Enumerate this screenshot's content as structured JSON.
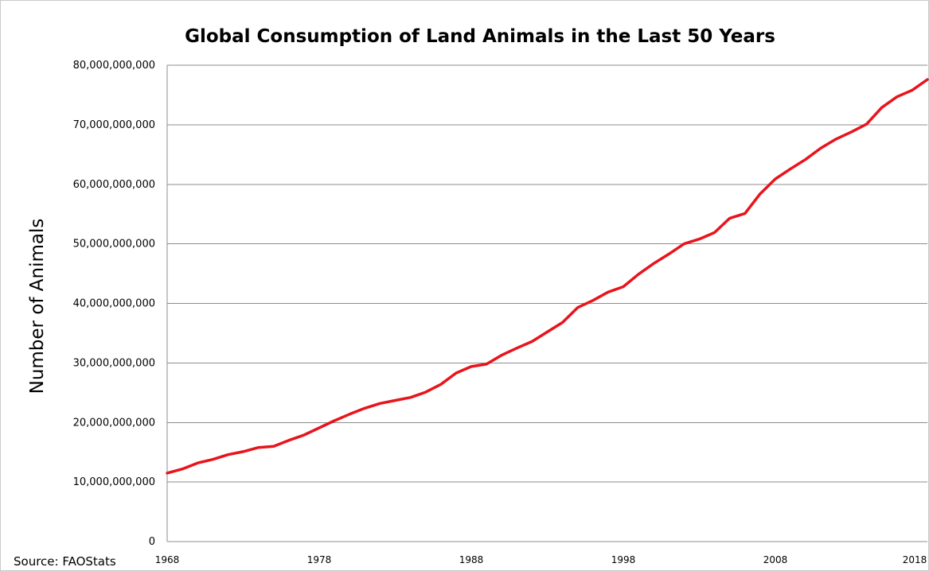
{
  "chart_data": {
    "type": "line",
    "title": "Global Consumption of Land Animals in the Last 50 Years",
    "ylabel": "Number of Animals",
    "xlabel": "",
    "source": "Source: FAOStats",
    "ylim": [
      0,
      80000000000
    ],
    "xlim": [
      1968,
      2018
    ],
    "y_ticks": [
      0,
      10000000000,
      20000000000,
      30000000000,
      40000000000,
      50000000000,
      60000000000,
      70000000000,
      80000000000
    ],
    "y_tick_labels": [
      "0",
      "10,000,000,000",
      "20,000,000,000",
      "30,000,000,000",
      "40,000,000,000",
      "50,000,000,000",
      "60,000,000,000",
      "70,000,000,000",
      "80,000,000,000"
    ],
    "x_ticks": [
      1968,
      1978,
      1988,
      1998,
      2008,
      2018
    ],
    "x_tick_labels": [
      "1968",
      "1978",
      "1988",
      "1998",
      "2008",
      "2018"
    ],
    "grid": "horizontal",
    "line_color": "#e8141c",
    "series": [
      {
        "x": [
          1968,
          1969,
          1970,
          1971,
          1972,
          1973,
          1974,
          1975,
          1976,
          1977,
          1978,
          1979,
          1980,
          1981,
          1982,
          1983,
          1984,
          1985,
          1986,
          1987,
          1988,
          1989,
          1990,
          1991,
          1992,
          1993,
          1994,
          1995,
          1996,
          1997,
          1998,
          1999,
          2000,
          2001,
          2002,
          2003,
          2004,
          2005,
          2006,
          2007,
          2008,
          2009,
          2010,
          2011,
          2012,
          2013,
          2014,
          2015,
          2016,
          2017,
          2018
        ],
        "values": [
          11500000000,
          12200000000,
          13200000000,
          13800000000,
          14600000000,
          15100000000,
          15800000000,
          16000000000,
          17000000000,
          17900000000,
          19100000000,
          20300000000,
          21400000000,
          22400000000,
          23200000000,
          23700000000,
          24200000000,
          25100000000,
          26400000000,
          28300000000,
          29400000000,
          29800000000,
          31300000000,
          32500000000,
          33600000000,
          35200000000,
          36800000000,
          39300000000,
          40500000000,
          41900000000,
          42800000000,
          44900000000,
          46700000000,
          48300000000,
          50000000000,
          50800000000,
          51900000000,
          54300000000,
          55100000000,
          58400000000,
          60900000000,
          62600000000,
          64200000000,
          66100000000,
          67600000000,
          68800000000,
          70100000000,
          72900000000,
          74700000000,
          75800000000,
          77600000000
        ]
      }
    ]
  }
}
